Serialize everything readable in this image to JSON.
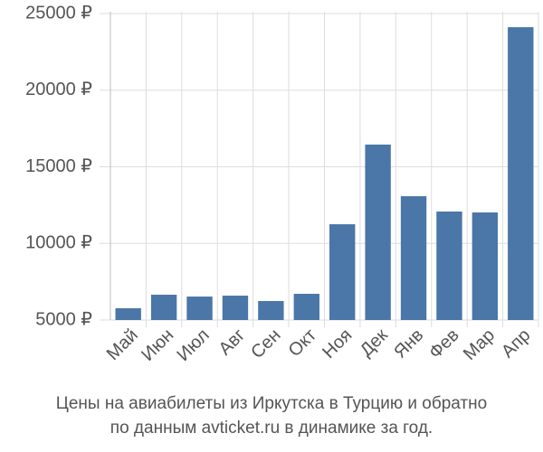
{
  "chart_data": {
    "type": "bar",
    "title": "Цены на авиабилеты из Иркутска в Турцию и обратно",
    "subtitle": "по данным avticket.ru в динамике за год.",
    "categories": [
      "Май",
      "Июн",
      "Июл",
      "Авг",
      "Сен",
      "Окт",
      "Ноя",
      "Дек",
      "Янв",
      "Фев",
      "Мар",
      "Апр"
    ],
    "values": [
      5770,
      6650,
      6530,
      6590,
      6240,
      6710,
      11250,
      16450,
      13080,
      12080,
      12020,
      24110
    ],
    "color": "#4a76a8",
    "ylim": [
      5000,
      25000
    ],
    "yticks": [
      {
        "value": 5000,
        "label": "5000 ₽"
      },
      {
        "value": 10000,
        "label": "10000 ₽"
      },
      {
        "value": 15000,
        "label": "15000 ₽"
      },
      {
        "value": 20000,
        "label": "20000 ₽"
      },
      {
        "value": 25000,
        "label": "25000 ₽"
      }
    ],
    "grid": true
  }
}
